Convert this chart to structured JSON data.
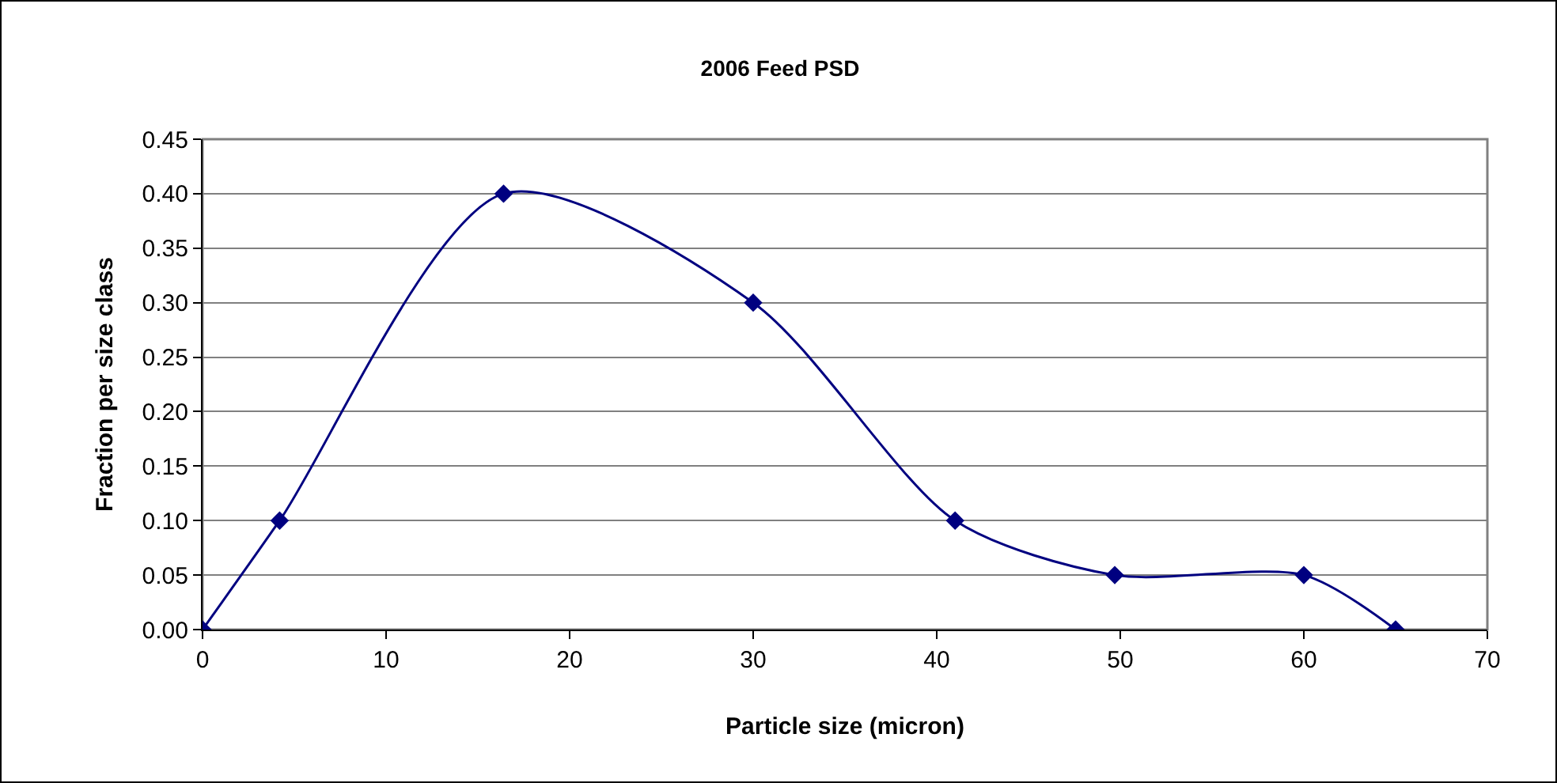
{
  "chart_data": {
    "type": "line",
    "title": "2006 Feed PSD",
    "xlabel": "Particle size (micron)",
    "ylabel": "Fraction per size class",
    "x": [
      0,
      4.2,
      16.4,
      30,
      41,
      49.7,
      60,
      65
    ],
    "series": [
      {
        "color": "#000080",
        "values": [
          0,
          0.1,
          0.4,
          0.3,
          0.1,
          0.05,
          0.05,
          0
        ]
      }
    ],
    "xlim": [
      0,
      70
    ],
    "xticks": [
      0,
      10,
      20,
      30,
      40,
      50,
      60,
      70
    ],
    "ylim": [
      0,
      0.45
    ],
    "yticks": [
      {
        "value": 0,
        "label": "0.00"
      },
      {
        "value": 0.05,
        "label": "0.05"
      },
      {
        "value": 0.1,
        "label": "0.10"
      },
      {
        "value": 0.15,
        "label": "0.15"
      },
      {
        "value": 0.2,
        "label": "0.20"
      },
      {
        "value": 0.25,
        "label": "0.25"
      },
      {
        "value": 0.3,
        "label": "0.30"
      },
      {
        "value": 0.35,
        "label": "0.35"
      },
      {
        "value": 0.4,
        "label": "0.40"
      },
      {
        "value": 0.45,
        "label": "0.45"
      }
    ],
    "grid": "y",
    "legend": false,
    "marker": "diamond",
    "line_style": "solid"
  }
}
